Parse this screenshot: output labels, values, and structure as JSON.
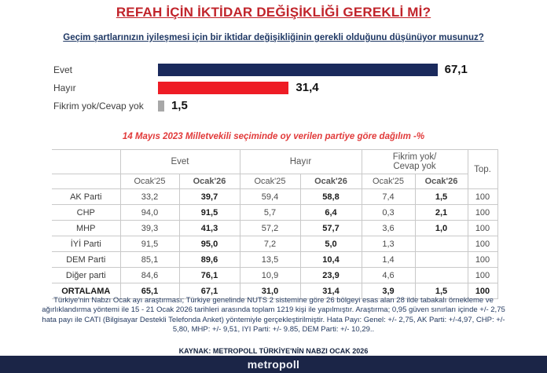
{
  "page": {
    "title": "REFAH İÇİN İKTİDAR DEĞİŞİKLİĞİ GEREKLİ Mİ?",
    "subtitle": "Geçim şartlarınızın iyileşmesi için bir iktidar değişikliğinin gerekli olduğunu düşünüyor musunuz?"
  },
  "colors": {
    "title_red": "#c1242b",
    "table_title_red": "#e13a3a",
    "subtitle_navy": "#1f3864",
    "bar_navy": "#1a2a5c",
    "bar_red": "#ee1c25",
    "bar_gray": "#a8a8a8",
    "footer_navy": "#1b2547"
  },
  "chart_data": {
    "type": "bar",
    "orientation": "horizontal",
    "categories": [
      "Evet",
      "Hayır",
      "Fikrim yok/Cevap yok"
    ],
    "values": [
      67.1,
      31.4,
      1.5
    ],
    "value_labels": [
      "67,1",
      "31,4",
      "1,5"
    ],
    "colors": [
      "#1a2a5c",
      "#ee1c25",
      "#a8a8a8"
    ],
    "xlim": [
      0,
      100
    ],
    "unit": "%",
    "grid": false,
    "title": ""
  },
  "table": {
    "title": "14 Mayıs 2023 Milletvekili seçiminde oy verilen partiye göre dağılım -%",
    "col_evet": "Evet",
    "col_hayir": "Hayır",
    "col_fikrim_line1": "Fikrim yok/",
    "col_fikrim_line2": "Cevap yok",
    "col_top": "Top.",
    "sub_ocak25": "Ocak'25",
    "sub_ocak26": "Ocak'26",
    "rows": [
      {
        "party": "AK Parti",
        "cells": [
          "33,2",
          "39,7",
          "59,4",
          "58,8",
          "7,4",
          "1,5",
          "100"
        ]
      },
      {
        "party": "CHP",
        "cells": [
          "94,0",
          "91,5",
          "5,7",
          "6,4",
          "0,3",
          "2,1",
          "100"
        ]
      },
      {
        "party": "MHP",
        "cells": [
          "39,3",
          "41,3",
          "57,2",
          "57,7",
          "3,6",
          "1,0",
          "100"
        ]
      },
      {
        "party": "İYİ Parti",
        "cells": [
          "91,5",
          "95,0",
          "7,2",
          "5,0",
          "1,3",
          "",
          "100"
        ]
      },
      {
        "party": "DEM Parti",
        "cells": [
          "85,1",
          "89,6",
          "13,5",
          "10,4",
          "1,4",
          "",
          "100"
        ]
      },
      {
        "party": "Diğer parti",
        "cells": [
          "84,6",
          "76,1",
          "10,9",
          "23,9",
          "4,6",
          "",
          "100"
        ]
      },
      {
        "party": "ORTALAMA",
        "cells": [
          "65,1",
          "67,1",
          "31,0",
          "31,4",
          "3,9",
          "1,5",
          "100"
        ]
      }
    ]
  },
  "footnote": "Türkiye'nin Nabzı Ocak ayı araştırması; Türkiye genelinde NUTS 2 sistemine göre 26 bölgeyi esas alan 28 ilde tabakalı örnekleme ve ağırlıklandırma yöntemi ile 15 - 21 Ocak 2026 tarihleri arasında toplam 1219 kişi ile yapılmıştır. Araştırma; 0,95 güven sınırları içinde +/- 2,75 hata payı ile CATI (Bilgisayar Destekli Telefonda Anket) yöntemiyle gerçekleştirilmiştir. Hata Payı: Genel: +/- 2,75, AK Parti: +/-4,97, CHP: +/- 5,80, MHP: +/- 9,51, IYI Parti: +/- 9.85, DEM Parti: +/- 10,29..",
  "source": "KAYNAK: METROPOLL TÜRKİYE'NİN NABZI OCAK 2026",
  "footer": {
    "logo_text": "metropoll"
  }
}
